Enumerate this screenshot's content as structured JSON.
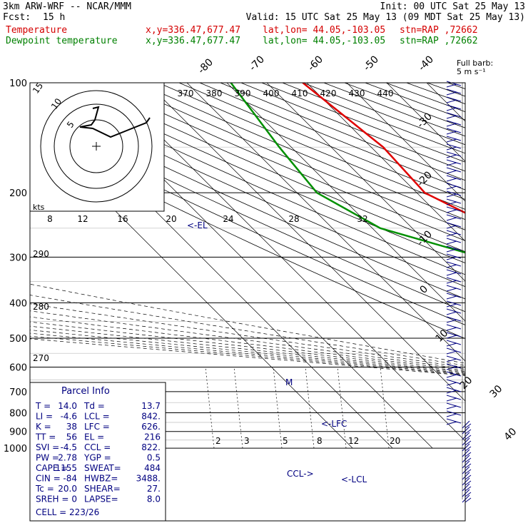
{
  "header": {
    "model": "3km ARW-WRF -- NCAR/MMM",
    "fcst_label": "Fcst:",
    "fcst_value": "15 h",
    "init": "Init: 00 UTC Sat 25 May 13",
    "valid": "Valid: 15 UTC Sat 25 May 13 (09 MDT Sat 25 May 13)",
    "temp_label": "Temperature",
    "dew_label": "Dewpoint temperature",
    "xy": "x,y=336.47,677.47",
    "latlon": "lat,lon= 44.05,-103.05",
    "stn": "stn=RAP ,72662"
  },
  "colors": {
    "temperature": "#e00000",
    "dewpoint": "#009000",
    "parcel": "#000080",
    "grid": "#000000"
  },
  "barb_label": [
    "Full barb:",
    "5 m s⁻¹"
  ],
  "chart_data": {
    "type": "line",
    "diagram": "skew-T log-p",
    "ylabel": "",
    "pressure_ticks": [
      100,
      200,
      300,
      400,
      500,
      600,
      700,
      800,
      900,
      1000
    ],
    "isotherm_labels": [
      "-80",
      "-70",
      "-60",
      "-50",
      "-40",
      "-30",
      "-20",
      "-10",
      "0",
      "10",
      "20",
      "30",
      "40"
    ],
    "theta_labels": [
      "290",
      "280",
      "270"
    ],
    "mixing_ratio_labels": [
      "2",
      "3",
      "5",
      "8",
      "12",
      "20"
    ],
    "theta_e_labels": [
      "370",
      "380",
      "390",
      "400",
      "410",
      "420",
      "430",
      "440"
    ],
    "series": [
      {
        "name": "Temperature",
        "points": [
          [
            100,
            -61
          ],
          [
            150,
            -57
          ],
          [
            200,
            -58
          ],
          [
            250,
            -49
          ],
          [
            300,
            -38
          ],
          [
            400,
            -20
          ],
          [
            500,
            -8
          ],
          [
            600,
            2
          ],
          [
            700,
            6.5
          ],
          [
            750,
            9
          ],
          [
            800,
            11
          ],
          [
            850,
            13
          ],
          [
            880,
            14
          ]
        ]
      },
      {
        "name": "Dewpoint temperature",
        "points": [
          [
            100,
            -79
          ],
          [
            150,
            -83
          ],
          [
            200,
            -85
          ],
          [
            250,
            -78
          ],
          [
            300,
            -60
          ],
          [
            400,
            -53
          ],
          [
            500,
            -29
          ],
          [
            600,
            -9
          ],
          [
            650,
            -6
          ],
          [
            700,
            11
          ],
          [
            750,
            12
          ],
          [
            800,
            12
          ],
          [
            850,
            12.5
          ],
          [
            880,
            13.7
          ]
        ]
      }
    ],
    "annotations": [
      "<-EL",
      "<-LFC",
      "<-LCL",
      "CCL->",
      "M"
    ],
    "hodograph": {
      "units": "kts",
      "ring_labels": [
        "5",
        "10",
        "15"
      ],
      "speed_labels": [
        "8",
        "12",
        "16",
        "20",
        "24",
        "28",
        "32"
      ]
    }
  },
  "parcel_info": {
    "title": "Parcel Info",
    "rows": [
      [
        "T  =",
        "14.0",
        "Td =",
        "13.7"
      ],
      [
        "LI =",
        "-4.6",
        "LCL =",
        "842."
      ],
      [
        "K  =",
        "38",
        "LFC =",
        "626."
      ],
      [
        "TT =",
        "56",
        "EL  =",
        "216"
      ],
      [
        "SVI =",
        "-4.5",
        "CCL =",
        "822."
      ],
      [
        "PW =",
        "2.78",
        "YGP =",
        "0.5"
      ],
      [
        "CAPE =",
        "1155",
        "SWEAT=",
        "484"
      ],
      [
        "CIN =",
        "-84",
        "HWBZ=",
        "3488."
      ],
      [
        "Tc =",
        "20.0",
        "SHEAR=",
        "27."
      ],
      [
        "SREH =",
        "0",
        "LAPSE=",
        "8.0"
      ]
    ],
    "cell": "CELL = 223/26"
  }
}
